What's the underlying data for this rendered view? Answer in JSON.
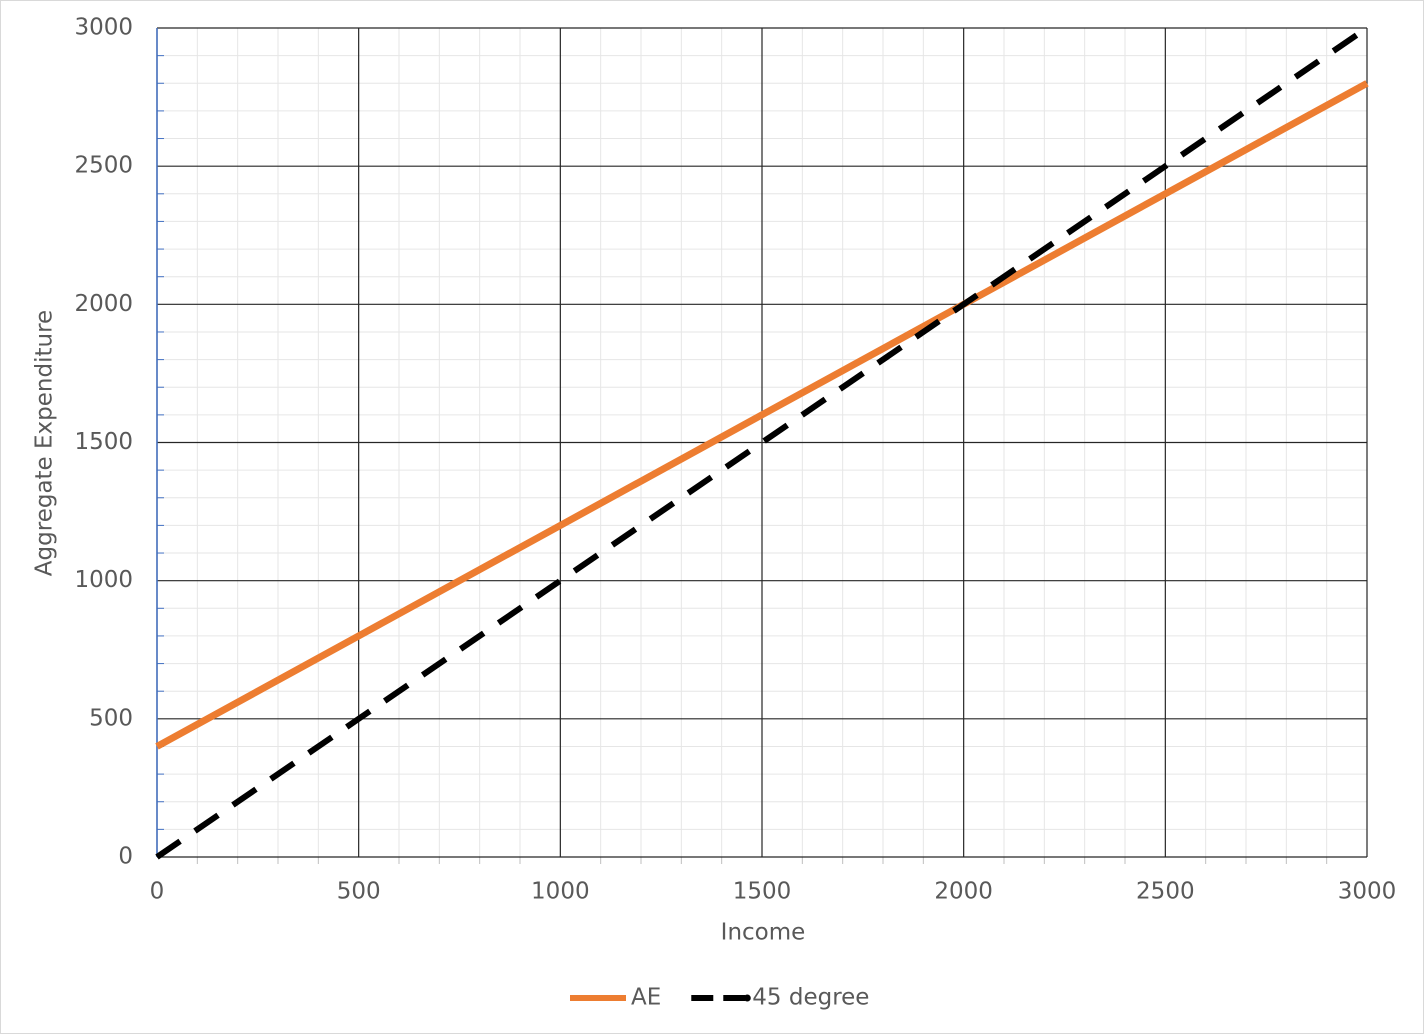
{
  "chart_data": {
    "type": "line",
    "x_label": "Income",
    "y_label": "Aggregate Expenditure",
    "x": [
      0,
      500,
      1000,
      1500,
      2000,
      2500,
      3000
    ],
    "series": [
      {
        "name": "AE",
        "color": "#ed7d31",
        "dash": false,
        "values": [
          400,
          800,
          1200,
          1600,
          2000,
          2400,
          2800
        ]
      },
      {
        "name": "45 degree",
        "color": "#000000",
        "dash": true,
        "values": [
          0,
          500,
          1000,
          1500,
          2000,
          2500,
          3000
        ]
      }
    ],
    "xlim": [
      0,
      3000
    ],
    "ylim": [
      0,
      3000
    ],
    "xticks": [
      0,
      500,
      1000,
      1500,
      2000,
      2500,
      3000
    ],
    "yticks": [
      0,
      500,
      1000,
      1500,
      2000,
      2500,
      3000
    ],
    "xminorticks": [
      100,
      200,
      300,
      400,
      600,
      700,
      800,
      900,
      1100,
      1200,
      1300,
      1400,
      1600,
      1700,
      1800,
      1900,
      2100,
      2200,
      2300,
      2400,
      2600,
      2700,
      2800,
      2900
    ],
    "yminorticks": [
      100,
      200,
      300,
      400,
      600,
      700,
      800,
      900,
      1100,
      1200,
      1300,
      1400,
      1600,
      1700,
      1800,
      1900,
      2100,
      2200,
      2300,
      2400,
      2600,
      2700,
      2800,
      2900
    ],
    "grid": true,
    "legend": "bottom"
  }
}
